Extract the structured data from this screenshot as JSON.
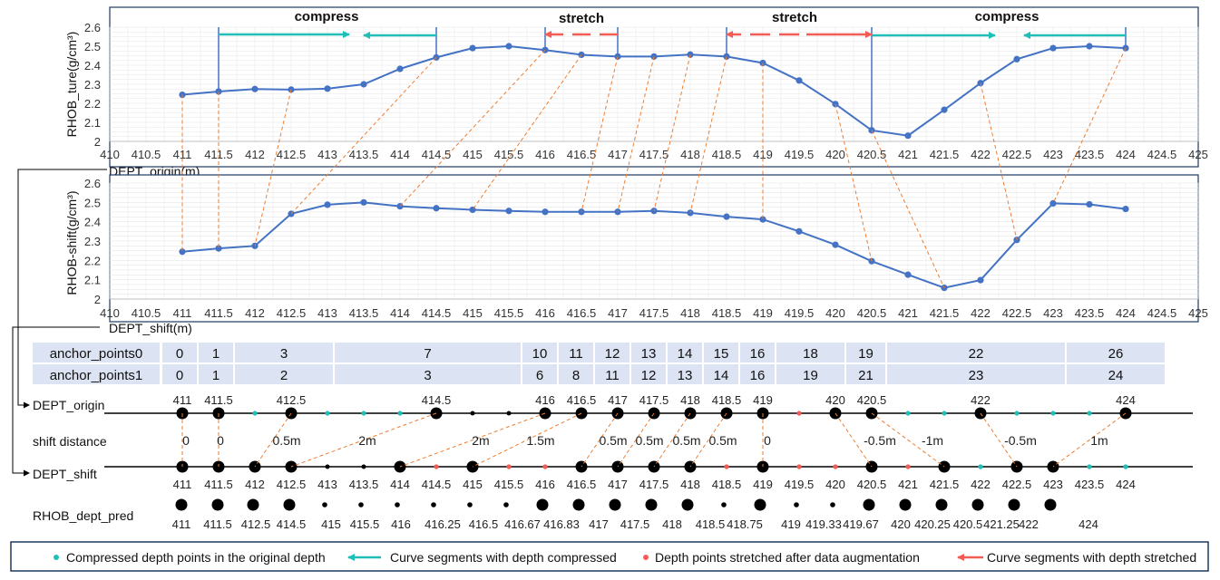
{
  "colors": {
    "series": "#4472C4",
    "guide": "#ED7D31",
    "compress": "#1FBFB8",
    "stretch": "#F25C54",
    "table_bg": "#DCE3F2",
    "legend_border": "#1F3864",
    "grid": "#E6E6E6"
  },
  "chart_data": [
    {
      "type": "line",
      "ylabel": "RHOB_ture(g/cm³)",
      "xlabel": "DEPT_origin(m)",
      "xlim": [
        410,
        425
      ],
      "xticks": [
        "410",
        "410.5",
        "411",
        "411.5",
        "412",
        "412.5",
        "413",
        "413.5",
        "414",
        "414.5",
        "415",
        "415.5",
        "416",
        "416.5",
        "417",
        "417.5",
        "418",
        "418.5",
        "419",
        "419.5",
        "420",
        "420.5",
        "421",
        "421.5",
        "422",
        "422.5",
        "423",
        "423.5",
        "424",
        "424.5",
        "425"
      ],
      "ylim": [
        2,
        2.6
      ],
      "yticks": [
        "2",
        "2.1",
        "2.2",
        "2.3",
        "2.4",
        "2.5",
        "2.6"
      ],
      "grid": true,
      "x": [
        411,
        411.5,
        412,
        412.5,
        413,
        413.5,
        414,
        414.5,
        415,
        415.5,
        416,
        416.5,
        417,
        417.5,
        418,
        418.5,
        419,
        419.5,
        420,
        420.5,
        421,
        421.5,
        422,
        422.5,
        423,
        423.5,
        424
      ],
      "y": [
        2.245,
        2.262,
        2.275,
        2.272,
        2.277,
        2.3,
        2.381,
        2.441,
        2.49,
        2.5,
        2.48,
        2.455,
        2.446,
        2.446,
        2.456,
        2.446,
        2.412,
        2.32,
        2.196,
        2.058,
        2.03,
        2.166,
        2.306,
        2.432,
        2.49,
        2.5,
        2.49
      ],
      "annotations": [
        "compress",
        "stretch",
        "stretch",
        "compress"
      ]
    },
    {
      "type": "line",
      "ylabel": "RHOB-shift(g/cm³)",
      "xlabel": "DEPT_shift(m)",
      "xlim": [
        410,
        425
      ],
      "xticks": [
        "410",
        "410.5",
        "411",
        "411.5",
        "412",
        "412.5",
        "413",
        "413.5",
        "414",
        "414.5",
        "415",
        "415.5",
        "416",
        "416.5",
        "417",
        "417.5",
        "418",
        "418.5",
        "419",
        "419.5",
        "420",
        "420.5",
        "421",
        "421.5",
        "422",
        "422.5",
        "423",
        "423.5",
        "424",
        "424.5",
        "425"
      ],
      "ylim": [
        2,
        2.6
      ],
      "yticks": [
        "2",
        "2.1",
        "2.2",
        "2.3",
        "2.4",
        "2.5",
        "2.6"
      ],
      "grid": true,
      "x": [
        411,
        411.5,
        412,
        412.5,
        413,
        413.5,
        414,
        414.5,
        415,
        415.5,
        416,
        416.5,
        417,
        417.5,
        418,
        418.5,
        419,
        419.5,
        420,
        420.5,
        421,
        421.5,
        422,
        422.5,
        423,
        423.5,
        424
      ],
      "y": [
        2.245,
        2.262,
        2.275,
        2.441,
        2.488,
        2.5,
        2.48,
        2.47,
        2.462,
        2.456,
        2.451,
        2.451,
        2.451,
        2.456,
        2.446,
        2.426,
        2.412,
        2.35,
        2.281,
        2.196,
        2.126,
        2.058,
        2.098,
        2.306,
        2.495,
        2.49,
        2.466
      ]
    }
  ],
  "table": {
    "rows": [
      {
        "label": "anchor_points0",
        "values": [
          "0",
          "1",
          "3",
          "7",
          "10",
          "11",
          "12",
          "13",
          "14",
          "15",
          "16",
          "18",
          "19",
          "22",
          "26"
        ]
      },
      {
        "label": "anchor_points1",
        "values": [
          "0",
          "1",
          "2",
          "3",
          "6",
          "8",
          "11",
          "12",
          "13",
          "14",
          "16",
          "19",
          "21",
          "23",
          "24"
        ]
      }
    ]
  },
  "tracks": {
    "origin": {
      "label": "DEPT_origin",
      "labels": [
        "411",
        "411.5",
        "412.5",
        "414.5",
        "416",
        "416.5",
        "417",
        "417.5",
        "418",
        "418.5",
        "419",
        "420",
        "420.5",
        "422",
        "424"
      ]
    },
    "shift_distance": {
      "label": "shift distance",
      "values": [
        "0",
        "0",
        "0.5m",
        "2m",
        "2m",
        "1.5m",
        "0.5m",
        "0.5m",
        "0.5m",
        "0.5m",
        "0",
        "-0.5m",
        "-1m",
        "-0.5m",
        "1m"
      ]
    },
    "shift": {
      "label": "DEPT_shift",
      "labels": [
        "411",
        "411.5",
        "412",
        "412.5",
        "413",
        "413.5",
        "414",
        "414.5",
        "415",
        "415.5",
        "416",
        "416.5",
        "417",
        "417.5",
        "418",
        "418.5",
        "419",
        "419.5",
        "420",
        "420.5",
        "421",
        "421.5",
        "422",
        "422.5",
        "423",
        "423.5",
        "424"
      ]
    },
    "pred": {
      "label": "RHOB_dept_pred",
      "labels": [
        "411",
        "411.5",
        "412.5",
        "414.5",
        "415",
        "415.5",
        "416",
        "416.25",
        "416.5",
        "416.67",
        "416.83",
        "417",
        "417.5",
        "418",
        "418.5",
        "418.75",
        "419",
        "419.33",
        "419.67",
        "420",
        "420.25",
        "420.5",
        "421.25",
        "422",
        "424"
      ]
    }
  },
  "legend": [
    {
      "label": "Compressed depth points in the original depth"
    },
    {
      "label": "Curve segments with depth compressed"
    },
    {
      "label": "Depth points stretched after data augmentation"
    },
    {
      "label": "Curve segments with depth stretched"
    }
  ]
}
